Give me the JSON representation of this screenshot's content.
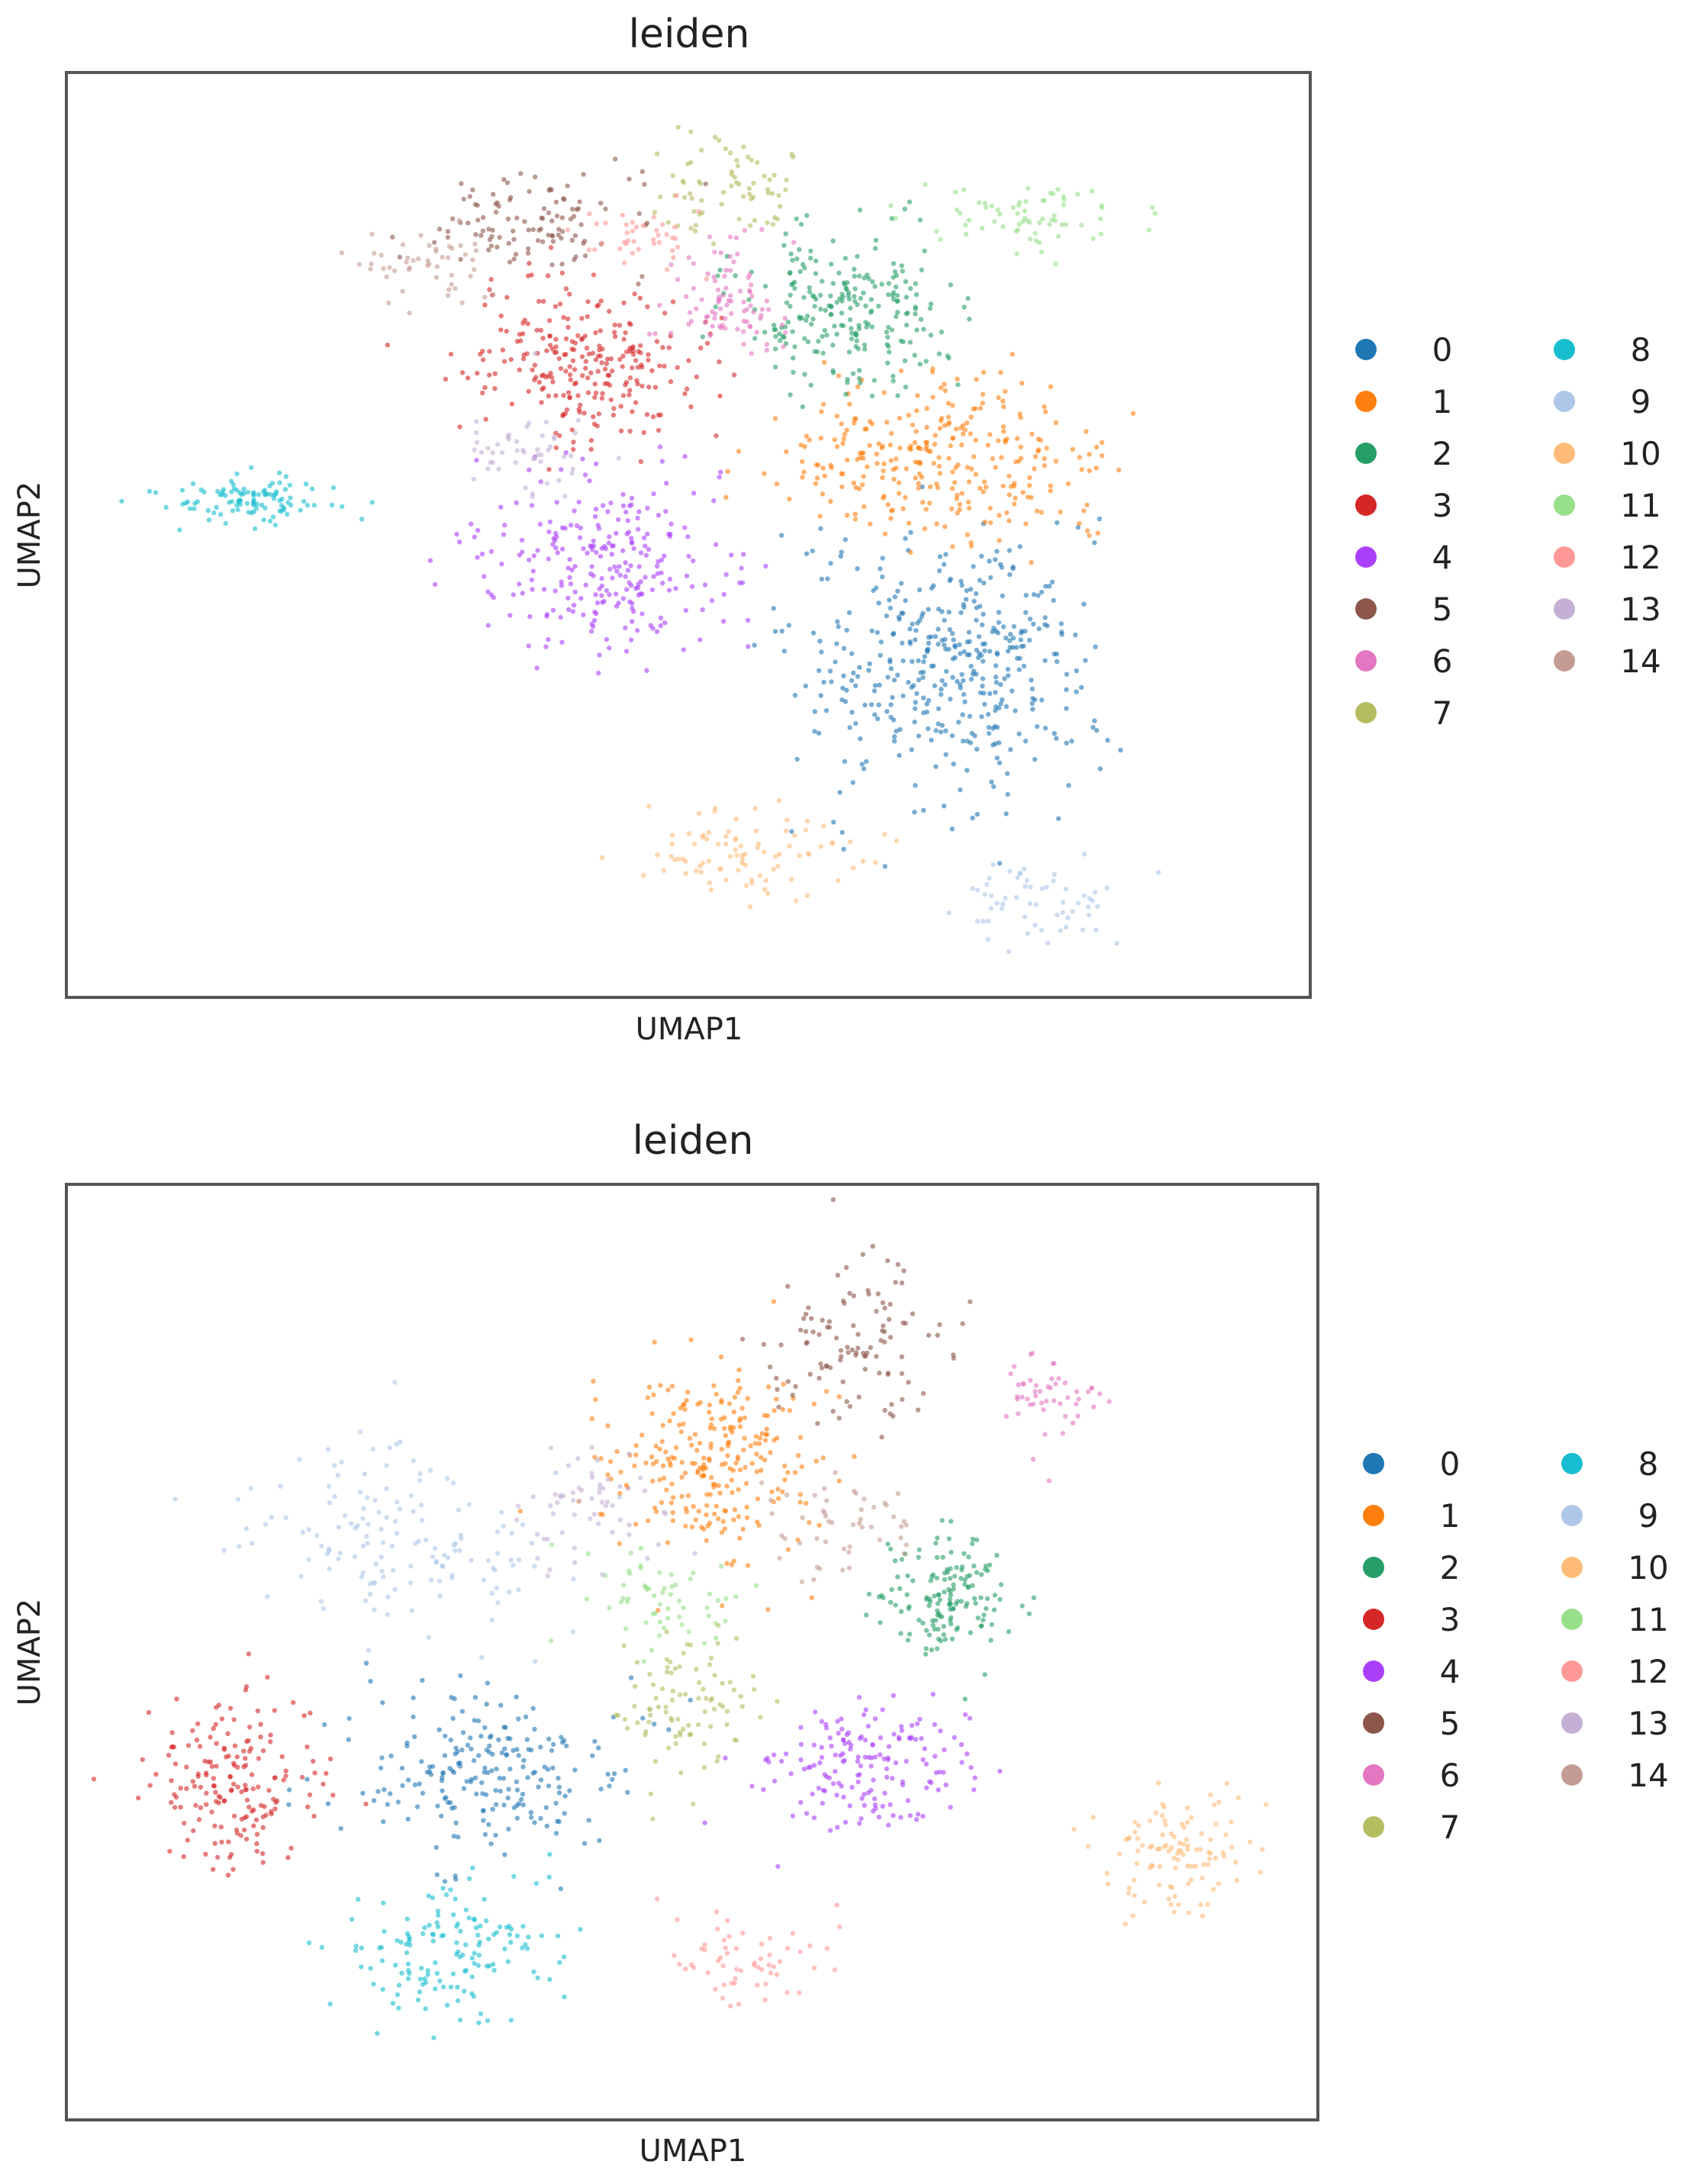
{
  "palette": {
    "0": "#1f77b4",
    "1": "#ff7f0e",
    "2": "#279e68",
    "3": "#d62728",
    "4": "#aa40fc",
    "5": "#8c564b",
    "6": "#e377c2",
    "7": "#b5bd61",
    "8": "#17becf",
    "9": "#aec7e8",
    "10": "#ffbb78",
    "11": "#98df8a",
    "12": "#ff9896",
    "13": "#c5b0d5",
    "14": "#c49c94"
  },
  "chart_data": [
    {
      "type": "scatter",
      "title": "leiden",
      "xlabel": "UMAP1",
      "ylabel": "UMAP2",
      "grid": false,
      "legend_position": "right",
      "legend_columns": [
        [
          "0",
          "1",
          "2",
          "3",
          "4",
          "5",
          "6",
          "7"
        ],
        [
          "8",
          "9",
          "10",
          "11",
          "12",
          "13",
          "14"
        ]
      ],
      "clusters": [
        {
          "name": "0",
          "center": [
            0.71,
            0.36
          ],
          "spread": [
            0.1,
            0.12
          ],
          "count": 420
        },
        {
          "name": "1",
          "center": [
            0.7,
            0.58
          ],
          "spread": [
            0.11,
            0.07
          ],
          "count": 300
        },
        {
          "name": "2",
          "center": [
            0.63,
            0.75
          ],
          "spread": [
            0.07,
            0.07
          ],
          "count": 240
        },
        {
          "name": "3",
          "center": [
            0.42,
            0.69
          ],
          "spread": [
            0.08,
            0.07
          ],
          "count": 260
        },
        {
          "name": "4",
          "center": [
            0.43,
            0.47
          ],
          "spread": [
            0.09,
            0.08
          ],
          "count": 260
        },
        {
          "name": "5",
          "center": [
            0.37,
            0.84
          ],
          "spread": [
            0.08,
            0.05
          ],
          "count": 110
        },
        {
          "name": "6",
          "center": [
            0.53,
            0.76
          ],
          "spread": [
            0.04,
            0.05
          ],
          "count": 90
        },
        {
          "name": "7",
          "center": [
            0.53,
            0.88
          ],
          "spread": [
            0.05,
            0.05
          ],
          "count": 70
        },
        {
          "name": "8",
          "center": [
            0.15,
            0.54
          ],
          "spread": [
            0.07,
            0.025
          ],
          "count": 110
        },
        {
          "name": "9",
          "center": [
            0.78,
            0.1
          ],
          "spread": [
            0.06,
            0.04
          ],
          "count": 60
        },
        {
          "name": "10",
          "center": [
            0.55,
            0.15
          ],
          "spread": [
            0.07,
            0.04
          ],
          "count": 90
        },
        {
          "name": "11",
          "center": [
            0.77,
            0.85
          ],
          "spread": [
            0.08,
            0.03
          ],
          "count": 70
        },
        {
          "name": "12",
          "center": [
            0.46,
            0.83
          ],
          "spread": [
            0.04,
            0.03
          ],
          "count": 40
        },
        {
          "name": "13",
          "center": [
            0.37,
            0.59
          ],
          "spread": [
            0.04,
            0.05
          ],
          "count": 50
        },
        {
          "name": "14",
          "center": [
            0.28,
            0.8
          ],
          "spread": [
            0.05,
            0.04
          ],
          "count": 50
        }
      ]
    },
    {
      "type": "scatter",
      "title": "leiden",
      "xlabel": "UMAP1",
      "ylabel": "UMAP2",
      "grid": false,
      "legend_position": "right",
      "legend_columns": [
        [
          "0",
          "1",
          "2",
          "3",
          "4",
          "5",
          "6",
          "7"
        ],
        [
          "8",
          "9",
          "10",
          "11",
          "12",
          "13",
          "14"
        ]
      ],
      "clusters": [
        {
          "name": "0",
          "center": [
            0.34,
            0.37
          ],
          "spread": [
            0.09,
            0.08
          ],
          "count": 220
        },
        {
          "name": "1",
          "center": [
            0.52,
            0.71
          ],
          "spread": [
            0.07,
            0.09
          ],
          "count": 260
        },
        {
          "name": "2",
          "center": [
            0.71,
            0.56
          ],
          "spread": [
            0.05,
            0.06
          ],
          "count": 150
        },
        {
          "name": "3",
          "center": [
            0.13,
            0.36
          ],
          "spread": [
            0.06,
            0.08
          ],
          "count": 180
        },
        {
          "name": "4",
          "center": [
            0.64,
            0.37
          ],
          "spread": [
            0.07,
            0.06
          ],
          "count": 170
        },
        {
          "name": "5",
          "center": [
            0.63,
            0.83
          ],
          "spread": [
            0.06,
            0.08
          ],
          "count": 110
        },
        {
          "name": "6",
          "center": [
            0.79,
            0.78
          ],
          "spread": [
            0.04,
            0.04
          ],
          "count": 50
        },
        {
          "name": "7",
          "center": [
            0.5,
            0.44
          ],
          "spread": [
            0.05,
            0.06
          ],
          "count": 90
        },
        {
          "name": "8",
          "center": [
            0.31,
            0.18
          ],
          "spread": [
            0.07,
            0.07
          ],
          "count": 150
        },
        {
          "name": "9",
          "center": [
            0.27,
            0.62
          ],
          "spread": [
            0.11,
            0.09
          ],
          "count": 150
        },
        {
          "name": "10",
          "center": [
            0.89,
            0.28
          ],
          "spread": [
            0.05,
            0.06
          ],
          "count": 110
        },
        {
          "name": "11",
          "center": [
            0.47,
            0.56
          ],
          "spread": [
            0.05,
            0.05
          ],
          "count": 60
        },
        {
          "name": "12",
          "center": [
            0.54,
            0.16
          ],
          "spread": [
            0.05,
            0.04
          ],
          "count": 60
        },
        {
          "name": "13",
          "center": [
            0.42,
            0.66
          ],
          "spread": [
            0.06,
            0.06
          ],
          "count": 60
        },
        {
          "name": "14",
          "center": [
            0.62,
            0.64
          ],
          "spread": [
            0.05,
            0.05
          ],
          "count": 50
        }
      ]
    }
  ]
}
